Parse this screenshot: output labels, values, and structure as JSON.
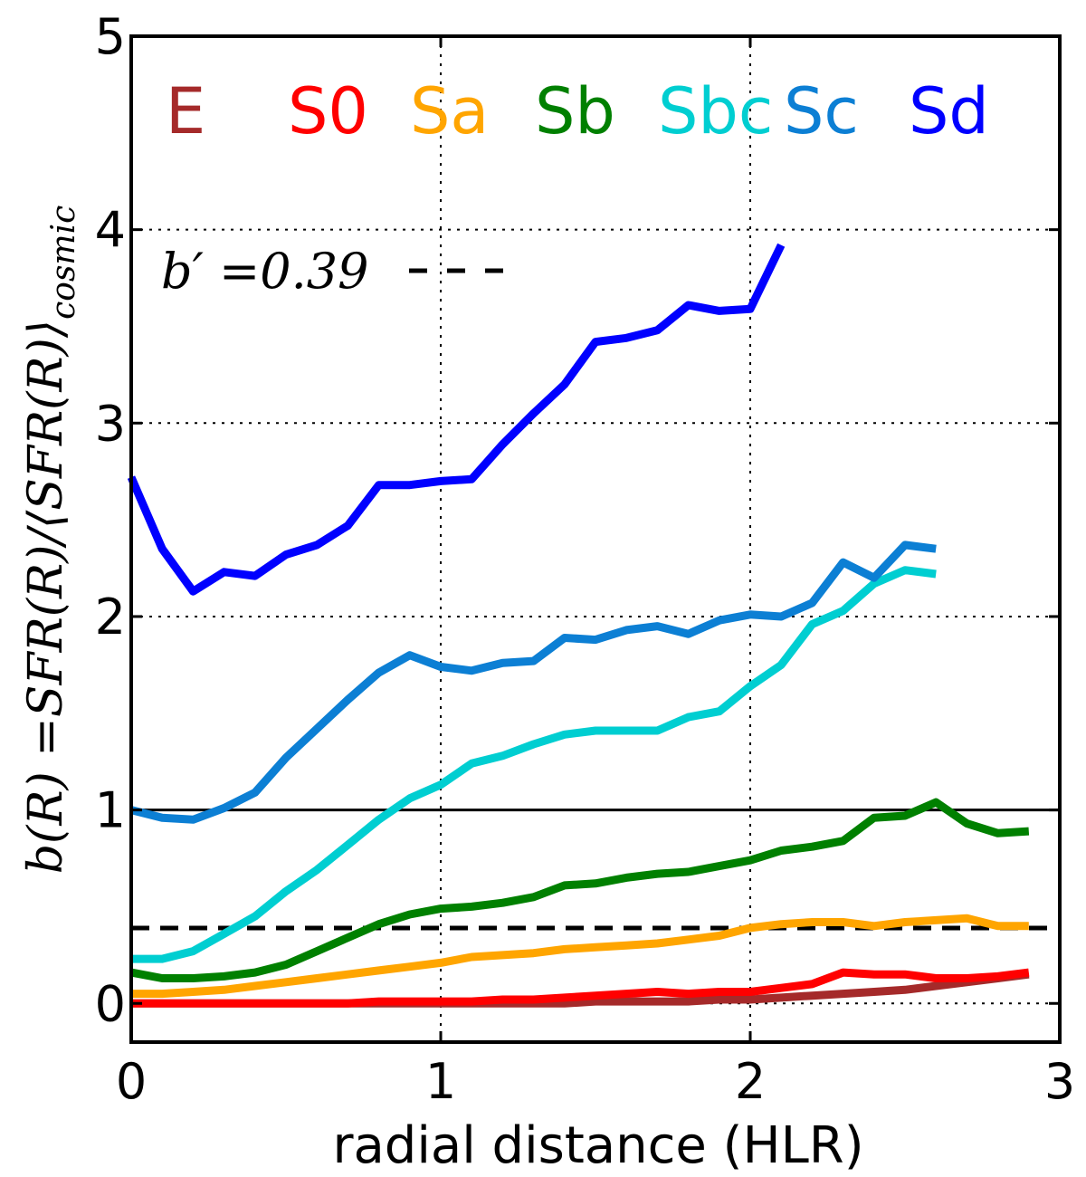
{
  "chart_data": {
    "type": "line",
    "xlabel": "radial distance (HLR)",
    "ylabel": "b(R) =SFR(R)/⟨SFR(R)⟩",
    "ylabel_subscript": "cosmic",
    "xlim": [
      0,
      3
    ],
    "ylim": [
      -0.2,
      5
    ],
    "x_ticks": [
      "0",
      "1",
      "2",
      "3"
    ],
    "y_ticks": [
      "0",
      "1",
      "2",
      "3",
      "4",
      "5"
    ],
    "grid": true,
    "reference_line": {
      "y": 1.0,
      "color": "#000000",
      "style": "solid"
    },
    "b_prime_line": {
      "y": 0.39,
      "color": "#000000",
      "style": "dashed",
      "label": "b′ =0.39"
    },
    "series": [
      {
        "name": "E",
        "color": "#a52a2a",
        "x": [
          0,
          0.1,
          0.2,
          0.3,
          0.4,
          0.5,
          0.6,
          0.7,
          0.8,
          0.9,
          1.0,
          1.1,
          1.2,
          1.3,
          1.4,
          1.5,
          1.6,
          1.7,
          1.8,
          1.9,
          2.0,
          2.1,
          2.2,
          2.3,
          2.4,
          2.5,
          2.6,
          2.7,
          2.8,
          2.9
        ],
        "y": [
          0.0,
          0.0,
          0.0,
          0.0,
          0.0,
          0.0,
          0.0,
          0.0,
          0.0,
          0.0,
          0.0,
          0.0,
          0.0,
          0.0,
          0.0,
          0.01,
          0.01,
          0.01,
          0.01,
          0.02,
          0.02,
          0.03,
          0.04,
          0.05,
          0.06,
          0.07,
          0.09,
          0.11,
          0.13,
          0.15
        ]
      },
      {
        "name": "S0",
        "color": "#ff0000",
        "x": [
          0,
          0.1,
          0.2,
          0.3,
          0.4,
          0.5,
          0.6,
          0.7,
          0.8,
          0.9,
          1.0,
          1.1,
          1.2,
          1.3,
          1.4,
          1.5,
          1.6,
          1.7,
          1.8,
          1.9,
          2.0,
          2.1,
          2.2,
          2.3,
          2.4,
          2.5,
          2.6,
          2.7,
          2.8,
          2.9
        ],
        "y": [
          0.0,
          0.0,
          0.0,
          0.0,
          0.0,
          0.0,
          0.0,
          0.0,
          0.01,
          0.01,
          0.01,
          0.01,
          0.02,
          0.02,
          0.03,
          0.04,
          0.05,
          0.06,
          0.05,
          0.06,
          0.06,
          0.08,
          0.1,
          0.16,
          0.15,
          0.15,
          0.13,
          0.13,
          0.14,
          0.16
        ]
      },
      {
        "name": "Sa",
        "color": "#ffa500",
        "x": [
          0,
          0.1,
          0.2,
          0.3,
          0.4,
          0.5,
          0.6,
          0.7,
          0.8,
          0.9,
          1.0,
          1.1,
          1.2,
          1.3,
          1.4,
          1.5,
          1.6,
          1.7,
          1.8,
          1.9,
          2.0,
          2.1,
          2.2,
          2.3,
          2.4,
          2.5,
          2.6,
          2.7,
          2.8,
          2.9
        ],
        "y": [
          0.05,
          0.05,
          0.06,
          0.07,
          0.09,
          0.11,
          0.13,
          0.15,
          0.17,
          0.19,
          0.21,
          0.24,
          0.25,
          0.26,
          0.28,
          0.29,
          0.3,
          0.31,
          0.33,
          0.35,
          0.39,
          0.41,
          0.42,
          0.42,
          0.4,
          0.42,
          0.43,
          0.44,
          0.4,
          0.4
        ]
      },
      {
        "name": "Sb",
        "color": "#008000",
        "x": [
          0,
          0.1,
          0.2,
          0.3,
          0.4,
          0.5,
          0.6,
          0.7,
          0.8,
          0.9,
          1.0,
          1.1,
          1.2,
          1.3,
          1.4,
          1.5,
          1.6,
          1.7,
          1.8,
          1.9,
          2.0,
          2.1,
          2.2,
          2.3,
          2.4,
          2.5,
          2.6,
          2.7,
          2.8,
          2.9
        ],
        "y": [
          0.16,
          0.13,
          0.13,
          0.14,
          0.16,
          0.2,
          0.27,
          0.34,
          0.41,
          0.46,
          0.49,
          0.5,
          0.52,
          0.55,
          0.61,
          0.62,
          0.65,
          0.67,
          0.68,
          0.71,
          0.74,
          0.79,
          0.81,
          0.84,
          0.96,
          0.97,
          1.04,
          0.93,
          0.88,
          0.89
        ]
      },
      {
        "name": "Sbc",
        "color": "#00ced1",
        "x": [
          0,
          0.1,
          0.2,
          0.3,
          0.4,
          0.5,
          0.6,
          0.7,
          0.8,
          0.9,
          1.0,
          1.1,
          1.2,
          1.3,
          1.4,
          1.5,
          1.6,
          1.7,
          1.8,
          1.9,
          2.0,
          2.1,
          2.2,
          2.3,
          2.4,
          2.5,
          2.6
        ],
        "y": [
          0.23,
          0.23,
          0.27,
          0.36,
          0.45,
          0.58,
          0.69,
          0.82,
          0.95,
          1.06,
          1.13,
          1.24,
          1.28,
          1.34,
          1.39,
          1.41,
          1.41,
          1.41,
          1.48,
          1.51,
          1.64,
          1.75,
          1.96,
          2.03,
          2.17,
          2.24,
          2.22
        ]
      },
      {
        "name": "Sc",
        "color": "#0c7fd4",
        "x": [
          0,
          0.1,
          0.2,
          0.3,
          0.4,
          0.5,
          0.6,
          0.7,
          0.8,
          0.9,
          1.0,
          1.1,
          1.2,
          1.3,
          1.4,
          1.5,
          1.6,
          1.7,
          1.8,
          1.9,
          2.0,
          2.1,
          2.2,
          2.3,
          2.4,
          2.5,
          2.6
        ],
        "y": [
          1.0,
          0.96,
          0.95,
          1.01,
          1.09,
          1.27,
          1.42,
          1.57,
          1.71,
          1.8,
          1.74,
          1.72,
          1.76,
          1.77,
          1.89,
          1.88,
          1.93,
          1.95,
          1.91,
          1.98,
          2.01,
          2.0,
          2.07,
          2.28,
          2.2,
          2.37,
          2.35
        ]
      },
      {
        "name": "Sd",
        "color": "#0000ff",
        "x": [
          0,
          0.1,
          0.2,
          0.3,
          0.4,
          0.5,
          0.6,
          0.7,
          0.8,
          0.9,
          1.0,
          1.1,
          1.2,
          1.3,
          1.4,
          1.5,
          1.6,
          1.7,
          1.8,
          1.9,
          2.0,
          2.1
        ],
        "y": [
          2.72,
          2.35,
          2.13,
          2.23,
          2.21,
          2.32,
          2.37,
          2.47,
          2.68,
          2.68,
          2.7,
          2.71,
          2.89,
          3.05,
          3.2,
          3.42,
          3.44,
          3.48,
          3.61,
          3.58,
          3.59,
          3.92
        ]
      }
    ]
  }
}
